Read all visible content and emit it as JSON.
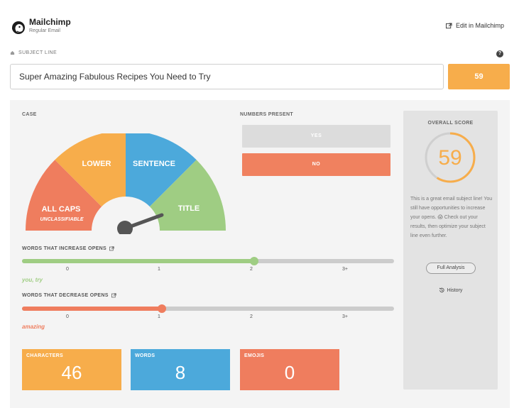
{
  "header": {
    "app_name": "Mailchimp",
    "app_sub": "Regular Email",
    "edit_link": "Edit in Mailchimp"
  },
  "subject": {
    "label": "SUBJECT LINE",
    "value": "Super Amazing Fabulous Recipes You Need to Try",
    "score": "59",
    "help_glyph": "?"
  },
  "case": {
    "label": "CASE",
    "segments": [
      "ALL CAPS",
      "LOWER",
      "SENTENCE",
      "TITLE"
    ],
    "all_caps_note": "UNCLASSIFIABLE",
    "selected": "TITLE"
  },
  "numbers": {
    "label": "NUMBERS PRESENT",
    "yes_label": "YES",
    "no_label": "NO",
    "selected": "NO"
  },
  "increase": {
    "label": "WORDS THAT INCREASE OPENS",
    "ticks": [
      "0",
      "1",
      "2",
      "3+"
    ],
    "value": 2,
    "max": 3,
    "words": "you, try",
    "color": "#9fcd83"
  },
  "decrease": {
    "label": "WORDS THAT DECREASE OPENS",
    "ticks": [
      "0",
      "1",
      "2",
      "3+"
    ],
    "value": 1,
    "max": 3,
    "words": "amazing",
    "color": "#ef7d5e"
  },
  "stats": {
    "characters": {
      "label": "CHARACTERS",
      "value": "46",
      "color": "#f7ad4b"
    },
    "words": {
      "label": "WORDS",
      "value": "8",
      "color": "#4ca9db"
    },
    "emojis": {
      "label": "EMOJIS",
      "value": "0",
      "color": "#ef7d5e"
    }
  },
  "overall": {
    "title": "OVERALL SCORE",
    "score": "59",
    "score_fraction": 0.59,
    "description": "This is a great email subject line! You still have opportunities to increase your opens. 😱 Check out your results, then optimize your subject line even further.",
    "full_analysis_label": "Full Analysis",
    "history_label": "History"
  },
  "colors": {
    "orange": "#f7ad4b",
    "blue": "#4ca9db",
    "green": "#9fcd83",
    "red": "#ef7d5e"
  }
}
